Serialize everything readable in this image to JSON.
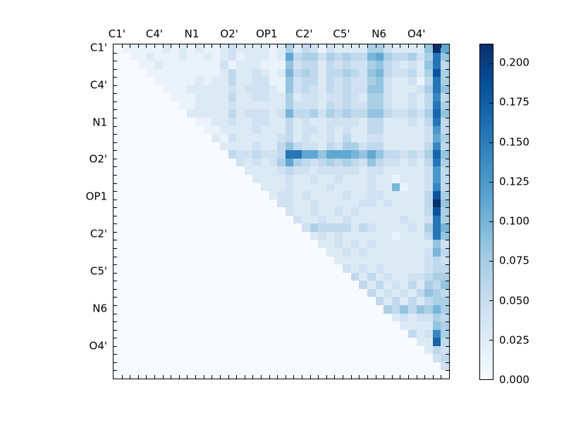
{
  "figure": {
    "background": "#ffffff",
    "frame_color": "#000000",
    "text_color": "#000000"
  },
  "chart_data": {
    "type": "heatmap",
    "title": "",
    "xlabel": "",
    "ylabel": "",
    "matrix_size": 41,
    "triangle": "upper",
    "grid": false,
    "legend_position": "right-colorbar",
    "x_axis_labels": [
      "C1'",
      "C4'",
      "N1",
      "O2'",
      "OP1",
      "C2'",
      "C5'",
      "N6",
      "O4'"
    ],
    "y_axis_labels": [
      "C1'",
      "C4'",
      "N1",
      "O2'",
      "OP1",
      "C2'",
      "C5'",
      "N6",
      "O4'"
    ],
    "colormap_name": "Blues",
    "colormap_hex": [
      "#f7fbff",
      "#deebf7",
      "#c6dbef",
      "#9ecae1",
      "#6baed6",
      "#4292c6",
      "#2171b5",
      "#08519c",
      "#08306b"
    ],
    "background_value_color": "#f7fbff",
    "vmin": 0.0,
    "vmax": 0.212,
    "colorbar": {
      "tick_labels": [
        "0.000",
        "0.025",
        "0.050",
        "0.075",
        "0.100",
        "0.125",
        "0.150",
        "0.175",
        "0.200"
      ],
      "tick_values": [
        0.0,
        0.025,
        0.05,
        0.075,
        0.1,
        0.125,
        0.15,
        0.175,
        0.2
      ]
    },
    "value_encoding": "each character is a hex digit d (0-15); cell value = d/15 * vmax; lower triangle and diagonal are 0",
    "cell_values_hex_rows": [
      "01111121212112322221252431322225532222 6f8",
      "00112111211212312221284553545447854453 5b6",
      "00011211111113122211163442434335643232 6b4",
      "00001111111112422321274542445436743342 5d5",
      "00000111112122422331163442434335632231 4b5",
      "00000011122222323332163432434336632223 5b6",
      "00000001112222422332252332334325532232 4a4",
      "00000000112222322222253332434335532232 4b5",
      "00000000022222423332374453545446643343 5c6",
      "00000000001122322332242322333324422232 4b4",
      "00000000000112222322242332323224422222 394",
      "00000000000021322222342322324223322222 385",
      "00000000000002222322464332435534422222 4a4",
      "00000000000000433433 4bb886888768644343 5c6",
      "00000000000000032323585434545436433232 4b5",
      "00000000000000002222343323333323322222 394",
      "00000000000000000222232232232223221222 394",
      "00000000000000000022232222322223227122 3a4",
      "00000000000000000002332322223223322222 4d5",
      "00000000000000000000332232222233232222 4f6",
      "00000000000000000000032232232322222222 4d5",
      "00000000000000000000003223223222222322 3b5",
      "00000000000000000000000354444243222232 5b7",
      "00000000000000000000000023232222221222 4b6",
      "00000000000000000000000002232323222222 263",
      "00000000000000000000000000223232222222 374",
      "00000000000000000000000000022222222222 343",
      "00000000000000000000000000003232322222 344",
      "00000000000000000000000000000424232233 455",
      "00000000000000000000000000000042423242 546",
      "00000000000000000000000000000004232324 654",
      "00000000000000000000000000000000424242 455",
      "00000000000000000000000000000000054646 575",
      "00000000000000000000000000000000002323 354",
      "00000000000000000000000000000000000222 265",
      "00000000000000000000000000000000000042 3a5",
      "00000000000000000000000000000000000002 2c4",
      "00000000000000000000000000000000000000 243",
      "00000000000000000000000000000000000000 034",
      "00000000000000000000000000000000000000 003",
      "00000000000000000000000000000000000000 000"
    ]
  }
}
